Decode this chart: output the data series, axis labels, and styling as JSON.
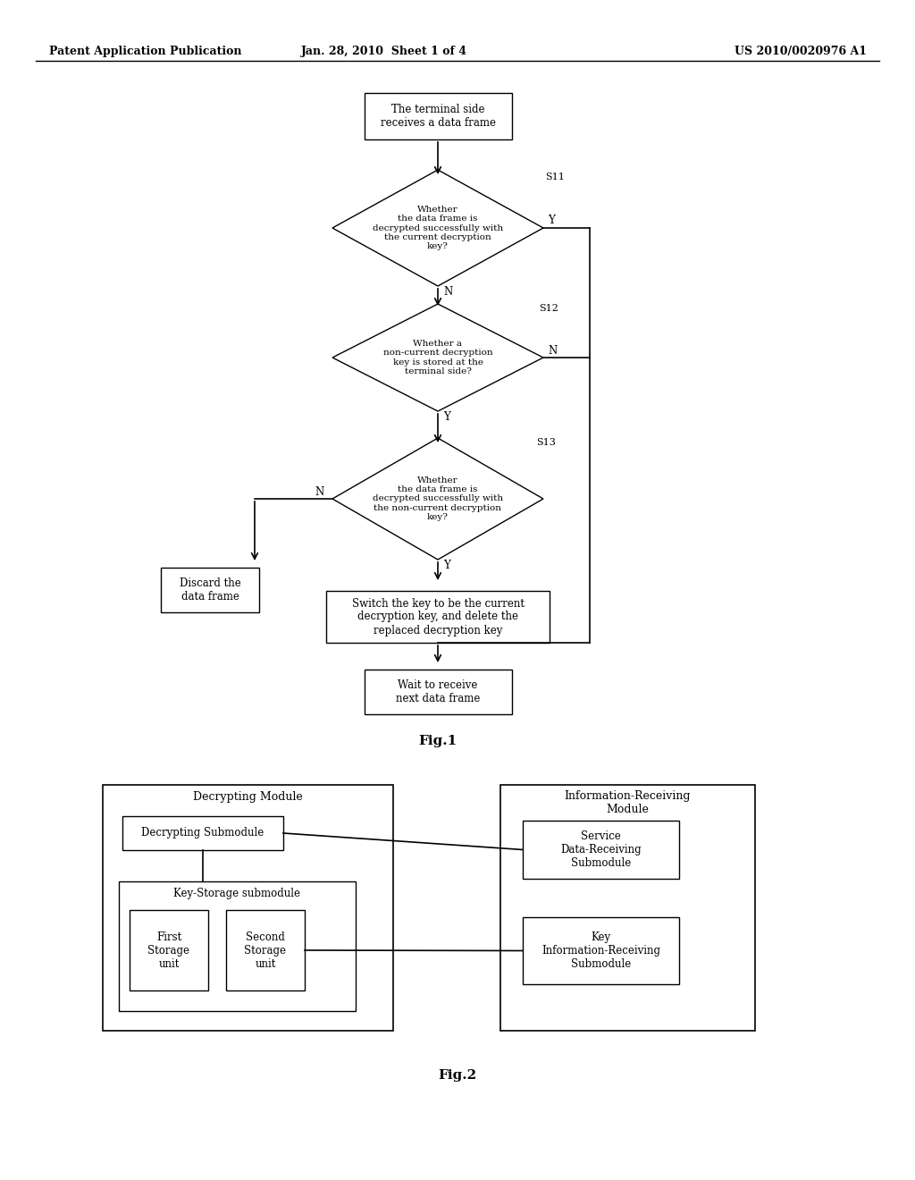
{
  "header_left": "Patent Application Publication",
  "header_mid": "Jan. 28, 2010  Sheet 1 of 4",
  "header_right": "US 2010/0020976 A1",
  "fig1_label": "Fig.1",
  "fig2_label": "Fig.2",
  "bg_color": "#ffffff",
  "flowchart": {
    "start_box": "The terminal side\nreceives a data frame",
    "diamond1": "Whether\nthe data frame is\ndecrypted successfully with\nthe current decryption\nkey?",
    "diamond1_label": "S11",
    "diamond2": "Whether a\nnon-current decryption\nkey is stored at the\nterminal side?",
    "diamond2_label": "S12",
    "diamond3": "Whether\nthe data frame is\ndecrypted successfully with\nthe non-current decryption\nkey?",
    "diamond3_label": "S13",
    "action_box": "Switch the key to be the current\ndecryption key, and delete the\nreplaced decryption key",
    "discard_box": "Discard the\ndata frame",
    "end_box": "Wait to receive\nnext data frame"
  },
  "fig2": {
    "dec_module_label": "Decrypting Module",
    "dec_submodule_label": "Decrypting Submodule",
    "key_storage_label": "Key-Storage submodule",
    "first_storage_label": "First\nStorage\nunit",
    "second_storage_label": "Second\nStorage\nunit",
    "info_module_label": "Information-Receiving\nModule",
    "service_submodule_label": "Service\nData-Receiving\nSubmodule",
    "key_info_submodule_label": "Key\nInformation-Receiving\nSubmodule"
  }
}
